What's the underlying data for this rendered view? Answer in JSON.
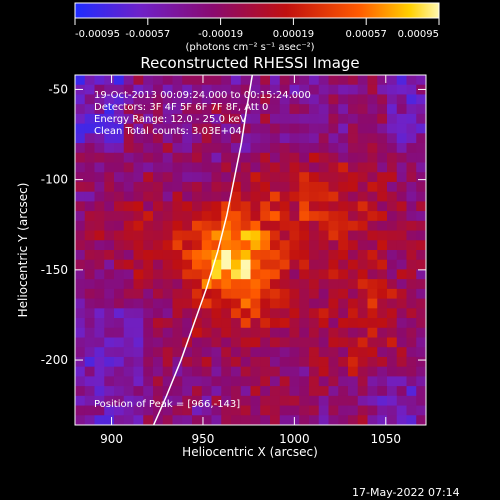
{
  "chart_data": {
    "type": "heatmap",
    "title": "Reconstructed RHESSI Image",
    "xlabel": "Heliocentric X (arcsec)",
    "ylabel": "Heliocentric Y (arcsec)",
    "xlim": [
      880,
      1072
    ],
    "ylim": [
      -236,
      -42
    ],
    "x_ticks": [
      900,
      950,
      1000,
      1050
    ],
    "y_ticks": [
      -50,
      -100,
      -150,
      -200
    ],
    "colorbar": {
      "ticks": [
        "-0.00095",
        "-0.00057",
        "-0.00019",
        "0.00019",
        "0.00057",
        "0.00095"
      ],
      "label": "(photons cm⁻² s⁻¹ asec⁻²)",
      "min": -0.00095,
      "max": 0.00095
    },
    "annotations": [
      "19-Oct-2013 00:09:24.000 to 00:15:24.000",
      "Detectors: 3F 4F 5F 6F 7F 8F, Att 0",
      "Energy Range: 12.0 - 25.0 keV",
      "Clean     Total counts: 3.03E+04"
    ],
    "peak": {
      "x": 966,
      "y": -143,
      "label": "Position of Peak = [966,-143]"
    },
    "limb": {
      "points": [
        [
          923,
          -236
        ],
        [
          930,
          -220
        ],
        [
          938,
          -200
        ],
        [
          945,
          -180
        ],
        [
          952,
          -160
        ],
        [
          958,
          -140
        ],
        [
          963,
          -120
        ],
        [
          967,
          -100
        ],
        [
          971,
          -80
        ],
        [
          974,
          -60
        ],
        [
          977,
          -42
        ]
      ]
    },
    "timestamp": "17-May-2022 07:14",
    "grid": false
  }
}
